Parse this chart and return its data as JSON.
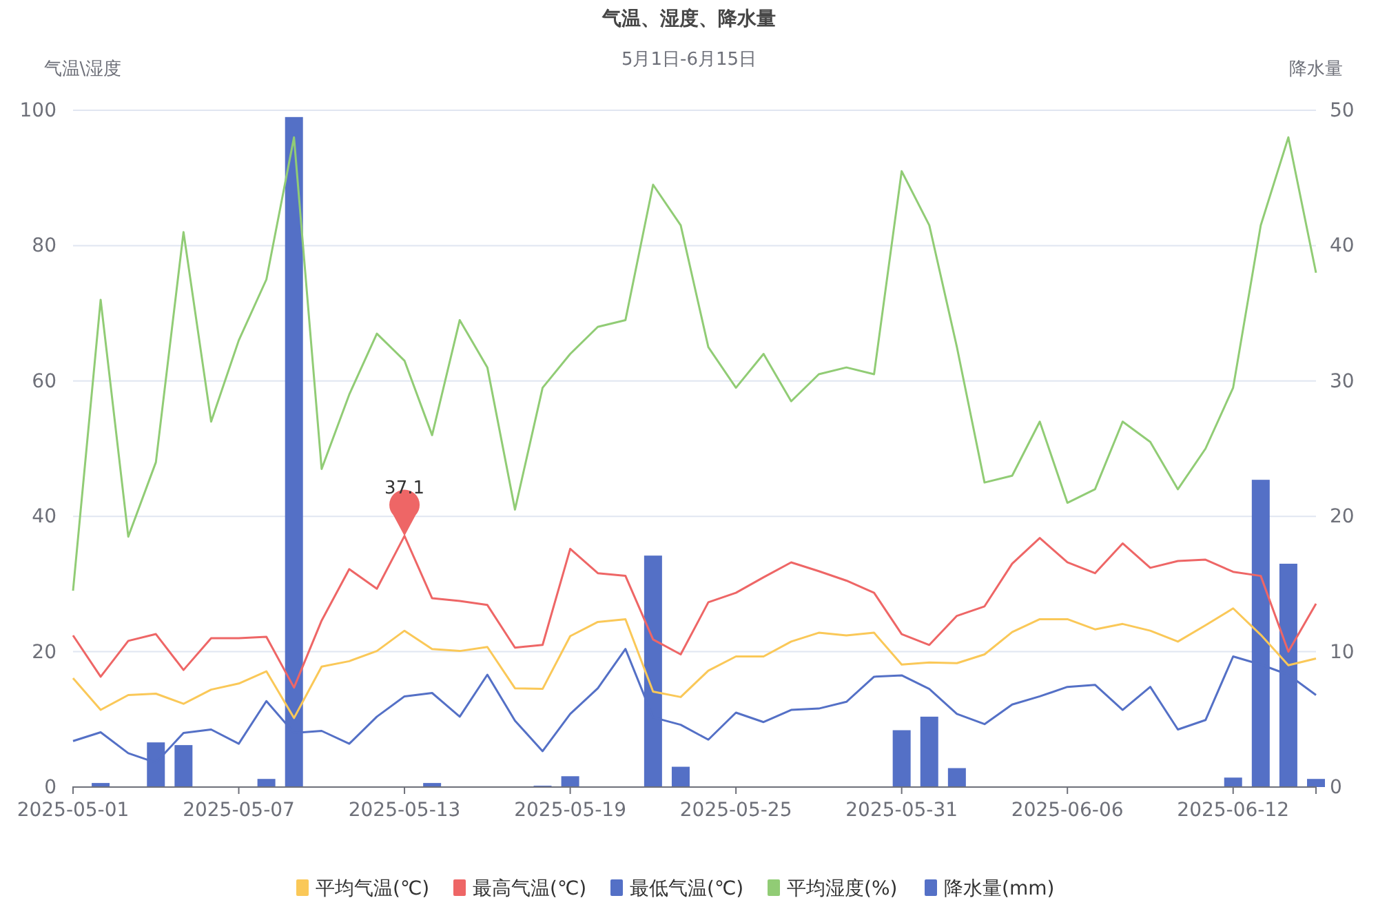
{
  "chart_data": {
    "type": "line",
    "title": "气温、湿度、降水量",
    "subtitle": "5月1日-6月15日",
    "ylabel": "气温\\湿度",
    "y2label": "降水量",
    "categories": [
      "2025-05-01",
      null,
      null,
      null,
      null,
      null,
      "2025-05-07",
      null,
      null,
      null,
      null,
      null,
      "2025-05-13",
      null,
      null,
      null,
      null,
      null,
      "2025-05-19",
      null,
      null,
      null,
      null,
      null,
      "2025-05-25",
      null,
      null,
      null,
      null,
      null,
      "2025-05-31",
      null,
      null,
      null,
      null,
      null,
      "2025-06-06",
      null,
      null,
      null,
      null,
      null,
      "2025-06-12",
      null,
      null,
      null
    ],
    "ylim": [
      0,
      100
    ],
    "yticks": [
      0,
      20,
      40,
      60,
      80,
      100
    ],
    "y2lim": [
      0,
      50
    ],
    "y2ticks": [
      0,
      10,
      20,
      30,
      40,
      50
    ],
    "grid": "y",
    "legend": "bottom",
    "marker": "none",
    "series": [
      {
        "name": "平均气温(℃)",
        "color": "#fac858",
        "values": [
          16.1,
          11.4,
          13.6,
          13.8,
          12.3,
          14.4,
          15.3,
          17.1,
          10.2,
          17.8,
          18.6,
          20.1,
          23.1,
          20.4,
          20.1,
          20.7,
          14.6,
          14.5,
          22.3,
          24.4,
          24.8,
          14.1,
          13.3,
          17.2,
          19.3,
          19.3,
          21.5,
          22.8,
          22.4,
          22.8,
          18.1,
          18.4,
          18.3,
          19.6,
          22.9,
          24.8,
          24.8,
          23.3,
          24.1,
          23.1,
          21.5,
          23.9,
          26.4,
          22.5,
          18.0,
          19.0
        ]
      },
      {
        "name": "最高气温(℃)",
        "color": "#ee6666",
        "values": [
          22.4,
          16.3,
          21.6,
          22.6,
          17.3,
          22.0,
          22.0,
          22.2,
          14.7,
          24.6,
          32.2,
          29.3,
          37.1,
          27.9,
          27.5,
          26.9,
          20.6,
          21.0,
          35.2,
          31.6,
          31.2,
          21.8,
          19.6,
          27.3,
          28.7,
          31.0,
          33.2,
          31.9,
          30.5,
          28.7,
          22.6,
          21.0,
          25.3,
          26.7,
          33.0,
          36.8,
          33.2,
          31.6,
          36.0,
          32.4,
          33.4,
          33.6,
          31.8,
          31.2,
          20.0,
          27.1
        ]
      },
      {
        "name": "最低气温(℃)",
        "color": "#5470c6",
        "values": [
          6.8,
          8.1,
          5.0,
          3.6,
          8.0,
          8.5,
          6.4,
          12.7,
          8.0,
          8.3,
          6.4,
          10.4,
          13.4,
          13.9,
          10.4,
          16.6,
          9.8,
          5.3,
          10.8,
          14.6,
          20.4,
          10.3,
          9.2,
          7.0,
          11.0,
          9.6,
          11.4,
          11.6,
          12.6,
          16.3,
          16.5,
          14.5,
          10.8,
          9.3,
          12.2,
          13.4,
          14.8,
          15.1,
          11.4,
          14.8,
          8.5,
          9.9,
          19.3,
          18.1,
          16.6,
          13.6
        ]
      },
      {
        "name": "平均湿度(%)",
        "color": "#91cc75",
        "values": [
          29,
          72,
          37,
          48,
          82,
          54,
          66,
          75,
          96,
          47,
          58,
          67,
          63,
          52,
          69,
          62,
          41,
          59,
          64,
          68,
          69,
          89,
          83,
          65,
          59,
          64,
          57,
          61,
          62,
          61,
          91,
          83,
          65,
          45,
          46,
          54,
          42,
          44,
          54,
          51,
          44,
          50,
          59,
          83,
          96,
          76
        ]
      },
      {
        "name": "降水量(mm)",
        "type": "bar",
        "axis": "y2",
        "color": "#5470c6",
        "values": [
          0,
          0.3,
          0,
          3.3,
          3.1,
          0,
          0,
          0.6,
          49.5,
          0,
          0,
          0,
          0,
          0.3,
          0,
          0,
          0,
          0.1,
          0.8,
          0,
          0,
          17.1,
          1.5,
          0,
          0,
          0,
          0,
          0,
          0,
          0,
          4.2,
          5.2,
          1.4,
          0,
          0,
          0,
          0,
          0,
          0,
          0,
          0,
          0,
          0.7,
          22.7,
          16.5,
          0.6
        ]
      }
    ],
    "annotations": [
      {
        "text": "37.1",
        "x": "2025-05-13",
        "y": 37.1
      }
    ]
  }
}
